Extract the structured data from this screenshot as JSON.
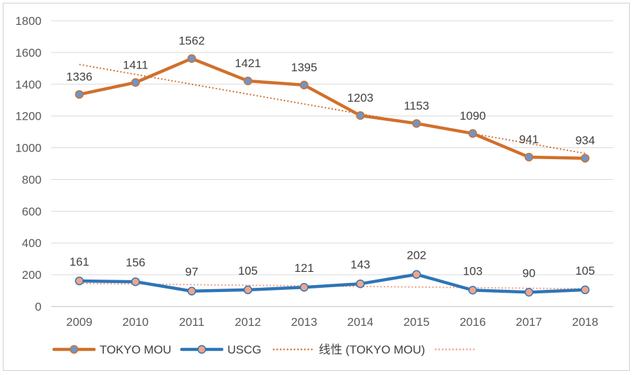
{
  "chart_data": {
    "type": "line",
    "title": "",
    "xlabel": "",
    "ylabel": "",
    "categories": [
      "2009",
      "2010",
      "2011",
      "2012",
      "2013",
      "2014",
      "2015",
      "2016",
      "2017",
      "2018"
    ],
    "ylim": [
      0,
      1800
    ],
    "yticks": [
      0,
      200,
      400,
      600,
      800,
      1000,
      1200,
      1400,
      1600,
      1800
    ],
    "grid": true,
    "legend": "bottom",
    "series": [
      {
        "name": "TOKYO MOU",
        "color": "#d0702c",
        "marker_fill": "#6e95c8",
        "values": [
          1336,
          1411,
          1562,
          1421,
          1395,
          1203,
          1153,
          1090,
          941,
          934
        ]
      },
      {
        "name": "USCG",
        "color": "#2e75b6",
        "marker_fill": "#f0a58a",
        "values": [
          161,
          156,
          97,
          105,
          121,
          143,
          202,
          103,
          90,
          105
        ]
      }
    ],
    "trendlines": [
      {
        "name": "线性 (TOKYO MOU)",
        "color": "#d0702c",
        "of": 0
      },
      {
        "name": "",
        "color": "#f09a7c",
        "of": 1
      }
    ]
  }
}
